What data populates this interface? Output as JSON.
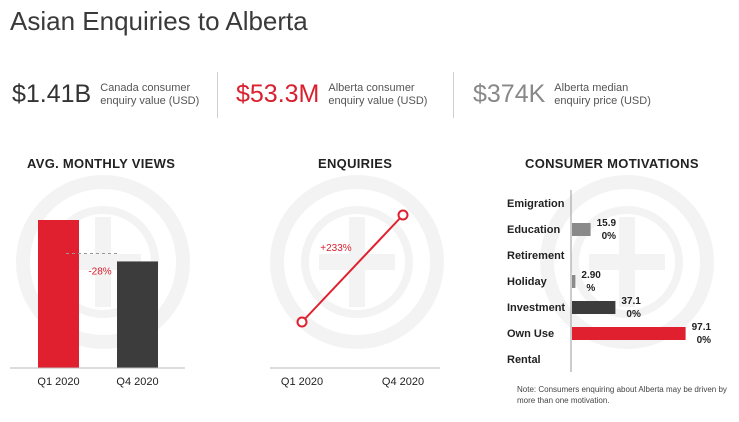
{
  "title": "Asian Enquiries to Alberta",
  "stats": [
    {
      "value": "$1.41B",
      "label_line1": "Canada consumer",
      "label_line2": "enquiry value (USD)",
      "color": "#333333"
    },
    {
      "value": "$53.3M",
      "label_line1": "Alberta consumer",
      "label_line2": "enquiry value (USD)",
      "color": "#d9202e"
    },
    {
      "value": "$374K",
      "label_line1": "Alberta median",
      "label_line2": "enquiry price (USD)",
      "color": "#888888"
    }
  ],
  "colors": {
    "red": "#e0202e",
    "dark": "#3c3c3c",
    "gray": "#8a8a8a"
  },
  "note": "Note: Consumers enquiring about Alberta may be driven by more than one motivation.",
  "chart_data": [
    {
      "type": "bar",
      "title": "AVG. MONTHLY VIEWS",
      "categories": [
        "Q1 2020",
        "Q4 2020"
      ],
      "values": [
        100,
        72
      ],
      "annotation": "-28%",
      "ylim": [
        0,
        100
      ],
      "grid": false
    },
    {
      "type": "line",
      "title": "ENQUIRIES",
      "categories": [
        "Q1 2020",
        "Q4 2020"
      ],
      "values": [
        30,
        100
      ],
      "annotation": "+233%",
      "ylim": [
        0,
        100
      ],
      "grid": false
    },
    {
      "type": "bar",
      "orientation": "horizontal",
      "title": "CONSUMER MOTIVATIONS",
      "categories": [
        "Emigration",
        "Education",
        "Retirement",
        "Holiday",
        "Investment",
        "Own Use",
        "Rental"
      ],
      "values": [
        0,
        15.9,
        0,
        2.9,
        37.1,
        97.1,
        0
      ],
      "value_labels": [
        "",
        "15.9\n0%",
        "",
        "2.90\n%",
        "37.1\n0%",
        "97.1\n0%",
        ""
      ],
      "bar_colors": [
        "#8a8a8a",
        "#8a8a8a",
        "#8a8a8a",
        "#8a8a8a",
        "#3c3c3c",
        "#e0202e",
        "#8a8a8a"
      ],
      "xlim": [
        0,
        100
      ],
      "grid": false
    }
  ]
}
